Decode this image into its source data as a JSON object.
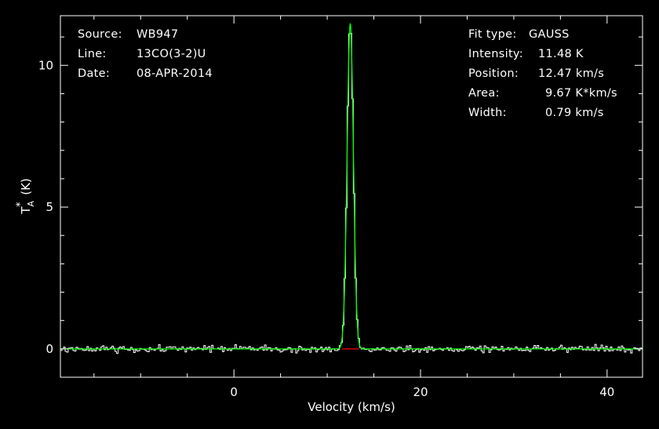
{
  "colors": {
    "background": "#000000",
    "frame": "#ffffff",
    "spectrum": "#ffffff",
    "fit": "#00ff00",
    "baseline_marker": "#ff0000"
  },
  "info_left": {
    "source_label": "Source:",
    "source_value": "WB947",
    "line_label": "Line:",
    "line_value": "13CO(3-2)U",
    "date_label": "Date:",
    "date_value": "08-APR-2014"
  },
  "info_right": {
    "fit_type_label": "Fit type:",
    "fit_type_value": "GAUSS",
    "intensity_label": "Intensity:",
    "intensity_value": "11.48 K",
    "position_label": "Position:",
    "position_value": "12.47 km/s",
    "area_label": "Area:",
    "area_value": "9.67 K*km/s",
    "width_label": "Width:",
    "width_value": "0.79 km/s"
  },
  "chart_data": {
    "type": "line",
    "xlabel": "Velocity (km/s)",
    "ylabel": "T_A* (K)",
    "xlim": [
      -18.6,
      43.8
    ],
    "ylim": [
      -1.0,
      11.75
    ],
    "x_ticks": [
      0,
      20,
      40
    ],
    "y_ticks": [
      0,
      5,
      10
    ],
    "grid": false,
    "series": [
      {
        "kind": "spectrum_histogram",
        "channel_width_kms": 0.167,
        "noise_rms_K": 0.12,
        "x_start": -18.6,
        "x_end": 43.8
      },
      {
        "kind": "gaussian_fit",
        "amplitude_K": 11.48,
        "center_kms": 12.47,
        "fwhm_kms": 0.79
      }
    ],
    "baseline_marker": {
      "x_range": [
        11.6,
        13.4
      ],
      "y": 0
    }
  }
}
